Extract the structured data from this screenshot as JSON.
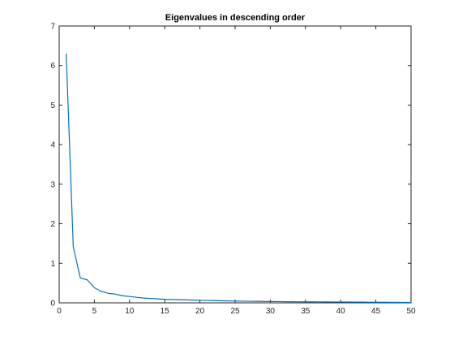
{
  "chart_data": {
    "type": "line",
    "title": "Eigenvalues in descending order",
    "xlabel": "",
    "ylabel": "",
    "xlim": [
      0,
      50
    ],
    "ylim": [
      0,
      7
    ],
    "xticks": [
      0,
      5,
      10,
      15,
      20,
      25,
      30,
      35,
      40,
      45,
      50
    ],
    "yticks": [
      0,
      1,
      2,
      3,
      4,
      5,
      6,
      7
    ],
    "grid": false,
    "legend": "none",
    "series": [
      {
        "color": "#0072bd",
        "x": [
          1,
          2,
          3,
          4,
          5,
          6,
          7,
          8,
          9,
          10,
          11,
          12,
          13,
          14,
          15,
          16,
          17,
          18,
          19,
          20,
          21,
          22,
          23,
          24,
          25,
          26,
          27,
          28,
          29,
          30,
          31,
          32,
          33,
          34,
          35,
          36,
          37,
          38,
          39,
          40,
          41,
          42,
          43,
          44,
          45,
          46,
          47,
          48,
          49,
          50
        ],
        "y": [
          6.3,
          1.42,
          0.63,
          0.58,
          0.38,
          0.29,
          0.24,
          0.22,
          0.18,
          0.16,
          0.14,
          0.12,
          0.11,
          0.1,
          0.09,
          0.085,
          0.08,
          0.075,
          0.07,
          0.065,
          0.06,
          0.056,
          0.052,
          0.048,
          0.045,
          0.042,
          0.04,
          0.038,
          0.036,
          0.034,
          0.032,
          0.03,
          0.028,
          0.027,
          0.026,
          0.025,
          0.024,
          0.023,
          0.022,
          0.021,
          0.02,
          0.019,
          0.018,
          0.017,
          0.016,
          0.015,
          0.014,
          0.013,
          0.012,
          0.011
        ]
      }
    ]
  }
}
